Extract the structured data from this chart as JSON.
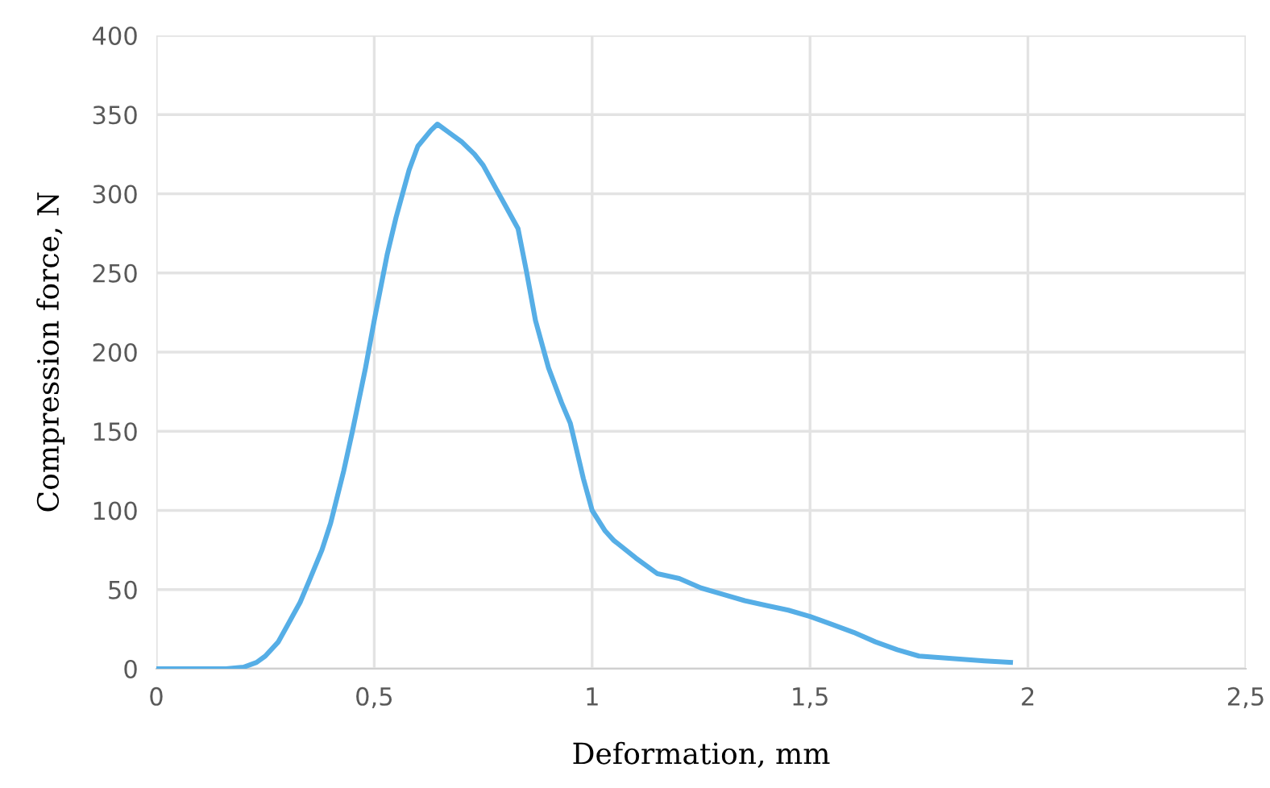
{
  "chart_data": {
    "type": "line",
    "xlabel": "Deformation, mm",
    "ylabel": "Compression force, N",
    "series": [
      {
        "color": "#56aee6",
        "x": [
          0,
          0.1,
          0.16,
          0.2,
          0.23,
          0.25,
          0.28,
          0.3,
          0.33,
          0.35,
          0.38,
          0.4,
          0.43,
          0.45,
          0.48,
          0.5,
          0.53,
          0.55,
          0.58,
          0.6,
          0.63,
          0.645,
          0.67,
          0.7,
          0.73,
          0.75,
          0.78,
          0.8,
          0.83,
          0.85,
          0.87,
          0.9,
          0.93,
          0.95,
          0.98,
          1.0,
          1.03,
          1.05,
          1.1,
          1.15,
          1.2,
          1.25,
          1.3,
          1.35,
          1.4,
          1.45,
          1.5,
          1.55,
          1.6,
          1.65,
          1.7,
          1.75,
          1.8,
          1.85,
          1.9,
          1.96
        ],
        "values": [
          0,
          0,
          0,
          1,
          4,
          8,
          17,
          27,
          42,
          55,
          75,
          92,
          125,
          150,
          190,
          220,
          262,
          285,
          315,
          330,
          340,
          344,
          339,
          333,
          325,
          318,
          303,
          293,
          278,
          250,
          220,
          190,
          168,
          155,
          120,
          100,
          87,
          81,
          70,
          60,
          57,
          51,
          47,
          43,
          40,
          37,
          33,
          28,
          23,
          17,
          12,
          8,
          7,
          6,
          5,
          4
        ]
      }
    ],
    "xlim": [
      0,
      2.5
    ],
    "ylim": [
      0,
      400
    ],
    "xticks": [
      0,
      {
        "value": 0.5,
        "label": "0,5"
      },
      1,
      {
        "value": 1.5,
        "label": "1,5"
      },
      2,
      {
        "value": 2.5,
        "label": "2,5"
      }
    ],
    "yticks": [
      0,
      50,
      100,
      150,
      200,
      250,
      300,
      350,
      400
    ],
    "grid": true,
    "legend": false,
    "marker": "none",
    "line_style": "solid"
  }
}
